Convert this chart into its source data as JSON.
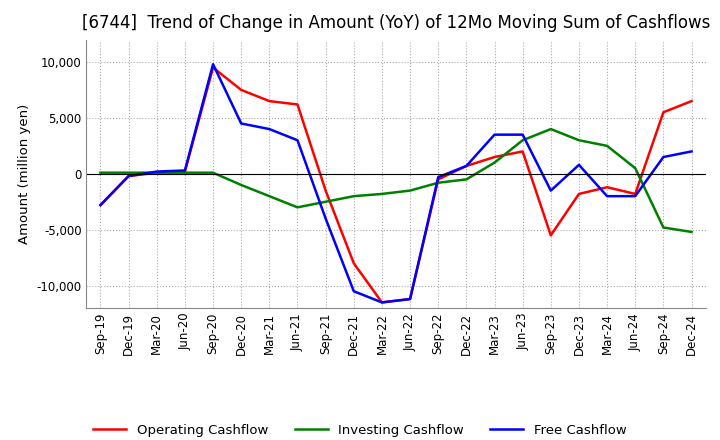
{
  "title": "[6744]  Trend of Change in Amount (YoY) of 12Mo Moving Sum of Cashflows",
  "ylabel": "Amount (million yen)",
  "ylim": [
    -12000,
    12000
  ],
  "yticks": [
    -10000,
    -5000,
    0,
    5000,
    10000
  ],
  "background_color": "#ffffff",
  "grid_color": "#aaaaaa",
  "title_fontsize": 12,
  "label_fontsize": 9.5,
  "tick_fontsize": 8.5,
  "x_labels": [
    "Sep-19",
    "Dec-19",
    "Mar-20",
    "Jun-20",
    "Sep-20",
    "Dec-20",
    "Mar-21",
    "Jun-21",
    "Sep-21",
    "Dec-21",
    "Mar-22",
    "Jun-22",
    "Sep-22",
    "Dec-22",
    "Mar-23",
    "Jun-23",
    "Sep-23",
    "Dec-23",
    "Mar-24",
    "Jun-24",
    "Sep-24",
    "Dec-24"
  ],
  "operating": [
    -2800,
    -200,
    100,
    200,
    9500,
    7500,
    6500,
    6200,
    -1500,
    -8000,
    -11500,
    -11200,
    -500,
    700,
    1500,
    2000,
    -5500,
    -1800,
    -1200,
    -1800,
    5500,
    6500
  ],
  "investing": [
    100,
    100,
    100,
    100,
    100,
    -1000,
    -2000,
    -3000,
    -2500,
    -2000,
    -1800,
    -1500,
    -800,
    -500,
    1000,
    3000,
    4000,
    3000,
    2500,
    500,
    -4800,
    -5200
  ],
  "free": [
    -2800,
    -200,
    200,
    300,
    9800,
    4500,
    4000,
    3000,
    -4000,
    -10500,
    -11500,
    -11200,
    -300,
    700,
    3500,
    3500,
    -1500,
    800,
    -2000,
    -2000,
    1500,
    2000
  ],
  "operating_color": "#ff0000",
  "investing_color": "#008000",
  "free_color": "#0000ff",
  "line_width": 1.8
}
